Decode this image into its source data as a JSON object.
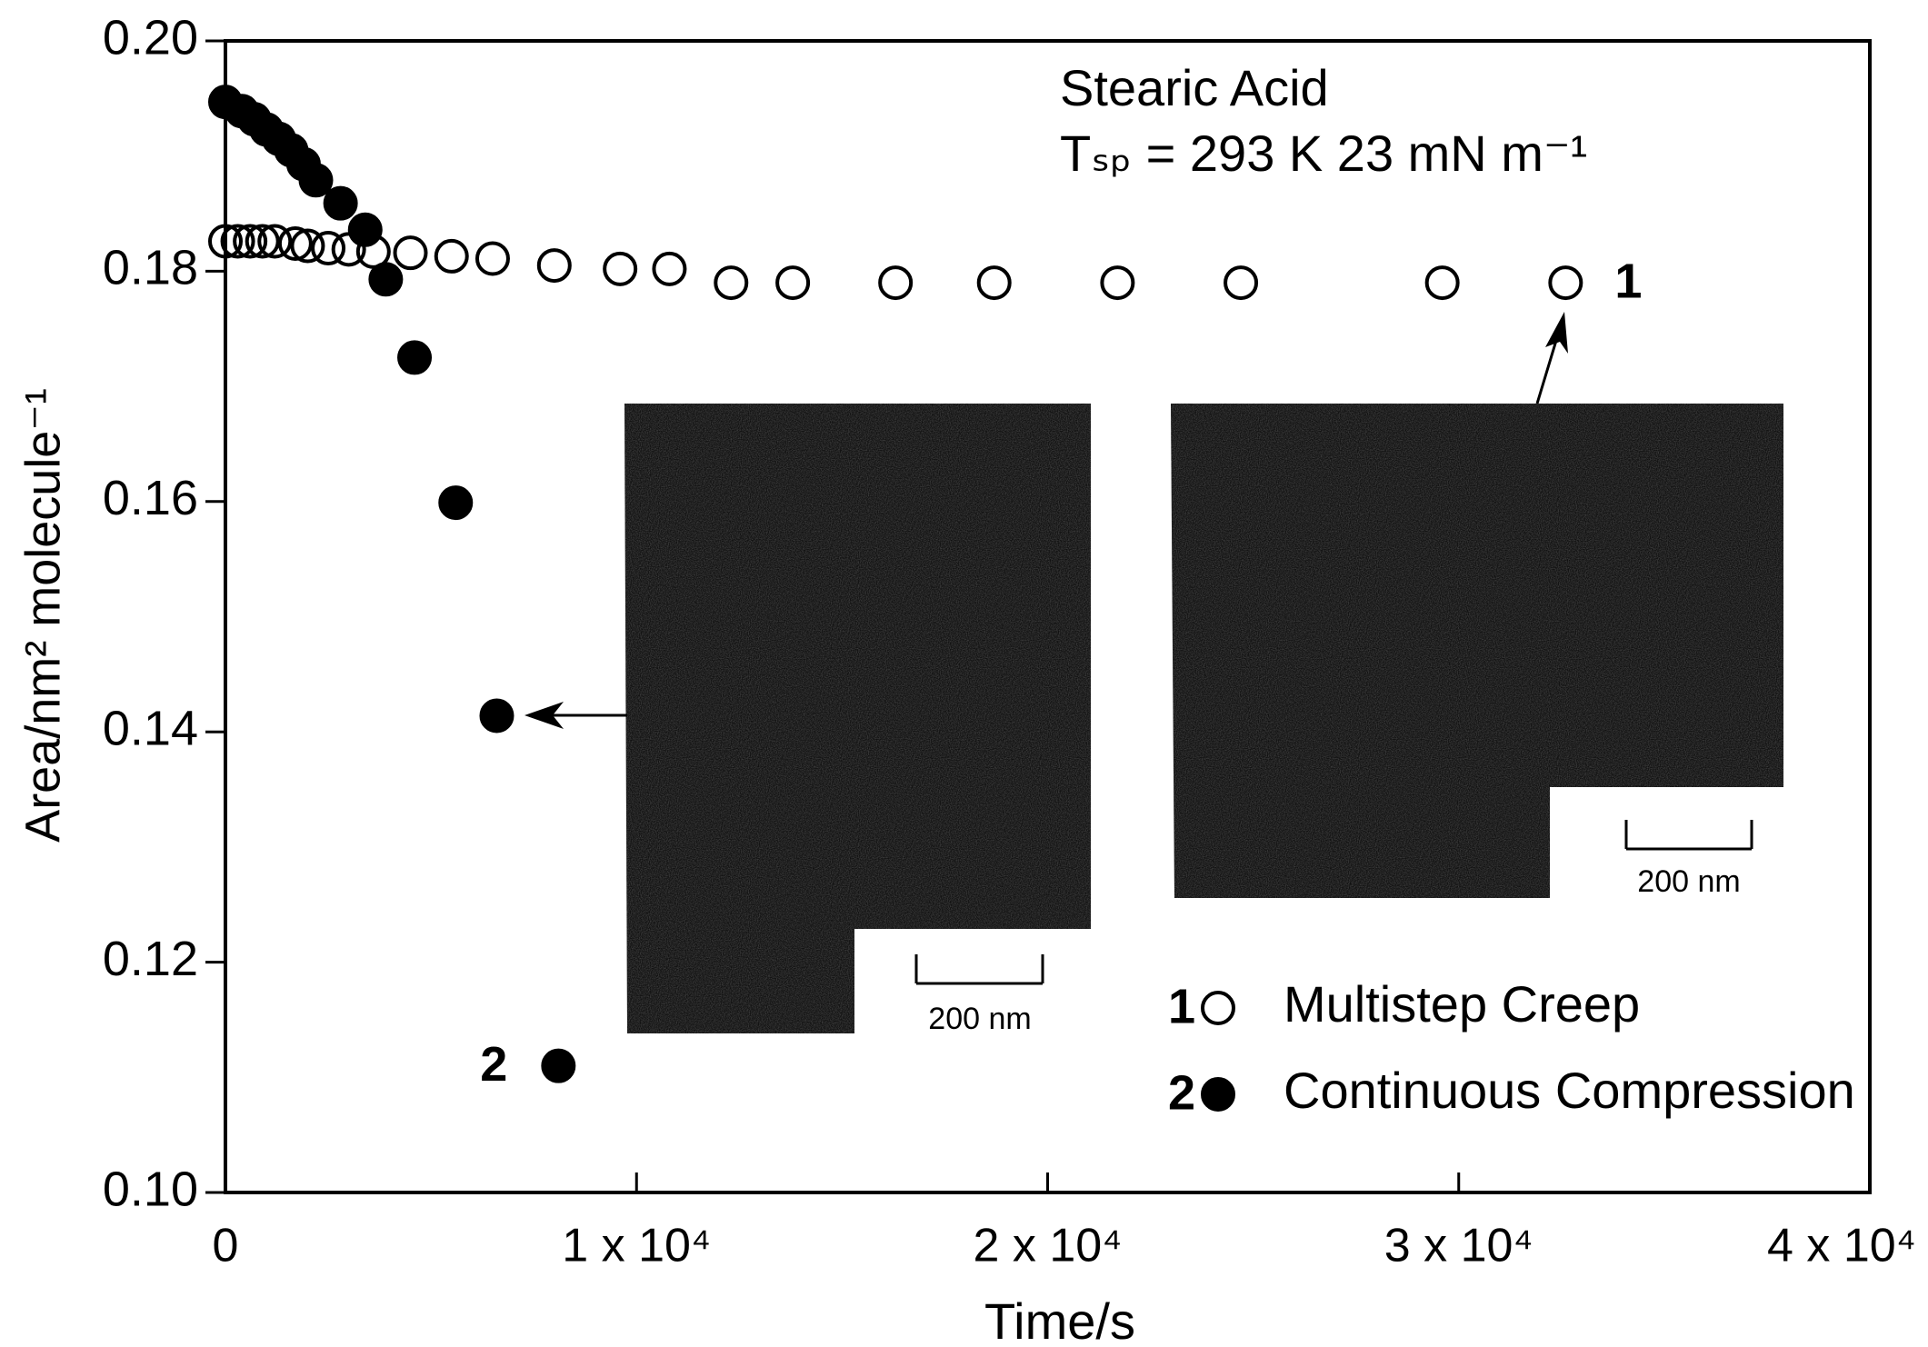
{
  "chart_data": {
    "type": "scatter",
    "annotations": [
      "Stearic Acid",
      "Tₛₚ = 293 K 23 mN m⁻¹"
    ],
    "x_label": "Time/s",
    "y_label": "Area/nm² molecule⁻¹",
    "xlim": [
      0,
      40000
    ],
    "ylim": [
      0.1,
      0.2
    ],
    "xticks": [
      0,
      {
        "value": 10000,
        "label": "1 x 10⁴"
      },
      {
        "value": 20000,
        "label": "2 x 10⁴"
      },
      {
        "value": 30000,
        "label": "3 x 10⁴"
      },
      {
        "value": 40000,
        "label": "4 x 10⁴"
      }
    ],
    "yticks": [
      {
        "value": 0.1,
        "label": "0.10"
      },
      {
        "value": 0.12,
        "label": "0.12"
      },
      {
        "value": 0.14,
        "label": "0.14"
      },
      {
        "value": 0.16,
        "label": "0.16"
      },
      {
        "value": 0.18,
        "label": "0.18"
      },
      {
        "value": 0.2,
        "label": "0.20"
      }
    ],
    "grid": false,
    "legend": "lower right",
    "series": [
      {
        "name": "Multistep Creep",
        "label": "1",
        "marker": "open",
        "color": "#000000",
        "x": [
          0,
          300,
          600,
          900,
          1200,
          1700,
          2000,
          2500,
          3000,
          3600,
          4500,
          5500,
          6500,
          8000,
          9600,
          10800,
          12300,
          13800,
          16300,
          18700,
          21700,
          24700,
          29600,
          32600
        ],
        "values": [
          0.1826,
          0.1826,
          0.1826,
          0.1826,
          0.1826,
          0.1824,
          0.1822,
          0.182,
          0.1819,
          0.1817,
          0.1816,
          0.1813,
          0.1811,
          0.1805,
          0.1802,
          0.1802,
          0.179,
          0.179,
          0.179,
          0.179,
          0.179,
          0.179,
          0.179,
          0.179
        ]
      },
      {
        "name": "Continuous Compression",
        "label": "2",
        "marker": "filled",
        "color": "#000000",
        "x": [
          0,
          400,
          700,
          1000,
          1300,
          1600,
          1900,
          2200,
          2800,
          3400,
          3900,
          4600,
          5600,
          6600,
          8100
        ],
        "values": [
          0.1947,
          0.1939,
          0.1932,
          0.1923,
          0.1915,
          0.1905,
          0.1893,
          0.1879,
          0.1859,
          0.1836,
          0.1793,
          0.1725,
          0.1599,
          0.1414,
          0.111
        ]
      }
    ],
    "insets": [
      {
        "scale_label": "200 nm"
      },
      {
        "scale_label": "200 nm"
      }
    ]
  }
}
